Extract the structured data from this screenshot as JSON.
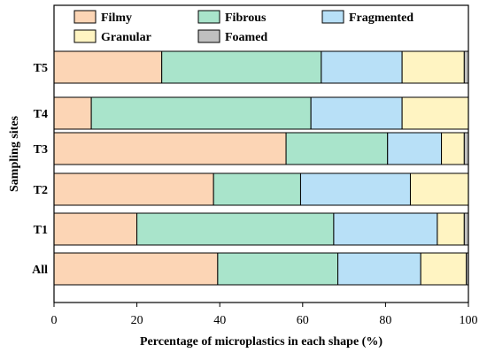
{
  "chart_data": {
    "type": "bar",
    "orientation": "horizontal",
    "stacked": true,
    "categories": [
      "T5",
      "T4",
      "T3",
      "T2",
      "T1",
      "All"
    ],
    "series": [
      {
        "name": "Filmy",
        "color": "#fcd5b5",
        "values": [
          26.0,
          9.0,
          56.0,
          38.5,
          20.0,
          39.5
        ]
      },
      {
        "name": "Fibrous",
        "color": "#a9e4cb",
        "values": [
          38.5,
          53.0,
          24.5,
          21.0,
          47.5,
          29.0
        ]
      },
      {
        "name": "Fragmented",
        "color": "#b8e0f7",
        "values": [
          19.5,
          22.0,
          13.0,
          26.5,
          25.0,
          20.0
        ]
      },
      {
        "name": "Granular",
        "color": "#fff4c2",
        "values": [
          15.0,
          16.0,
          5.5,
          14.0,
          6.5,
          11.0
        ]
      },
      {
        "name": "Foamed",
        "color": "#bfbfbf",
        "values": [
          1.0,
          0.0,
          1.0,
          0.0,
          1.0,
          0.5
        ]
      }
    ],
    "xlabel": "Percentage of microplastics in each shape (%)",
    "ylabel": "Sampling sites",
    "xlim": [
      0,
      100
    ],
    "xticks": [
      0,
      20,
      40,
      60,
      80,
      100
    ],
    "legend_position": "top",
    "grid": false
  }
}
